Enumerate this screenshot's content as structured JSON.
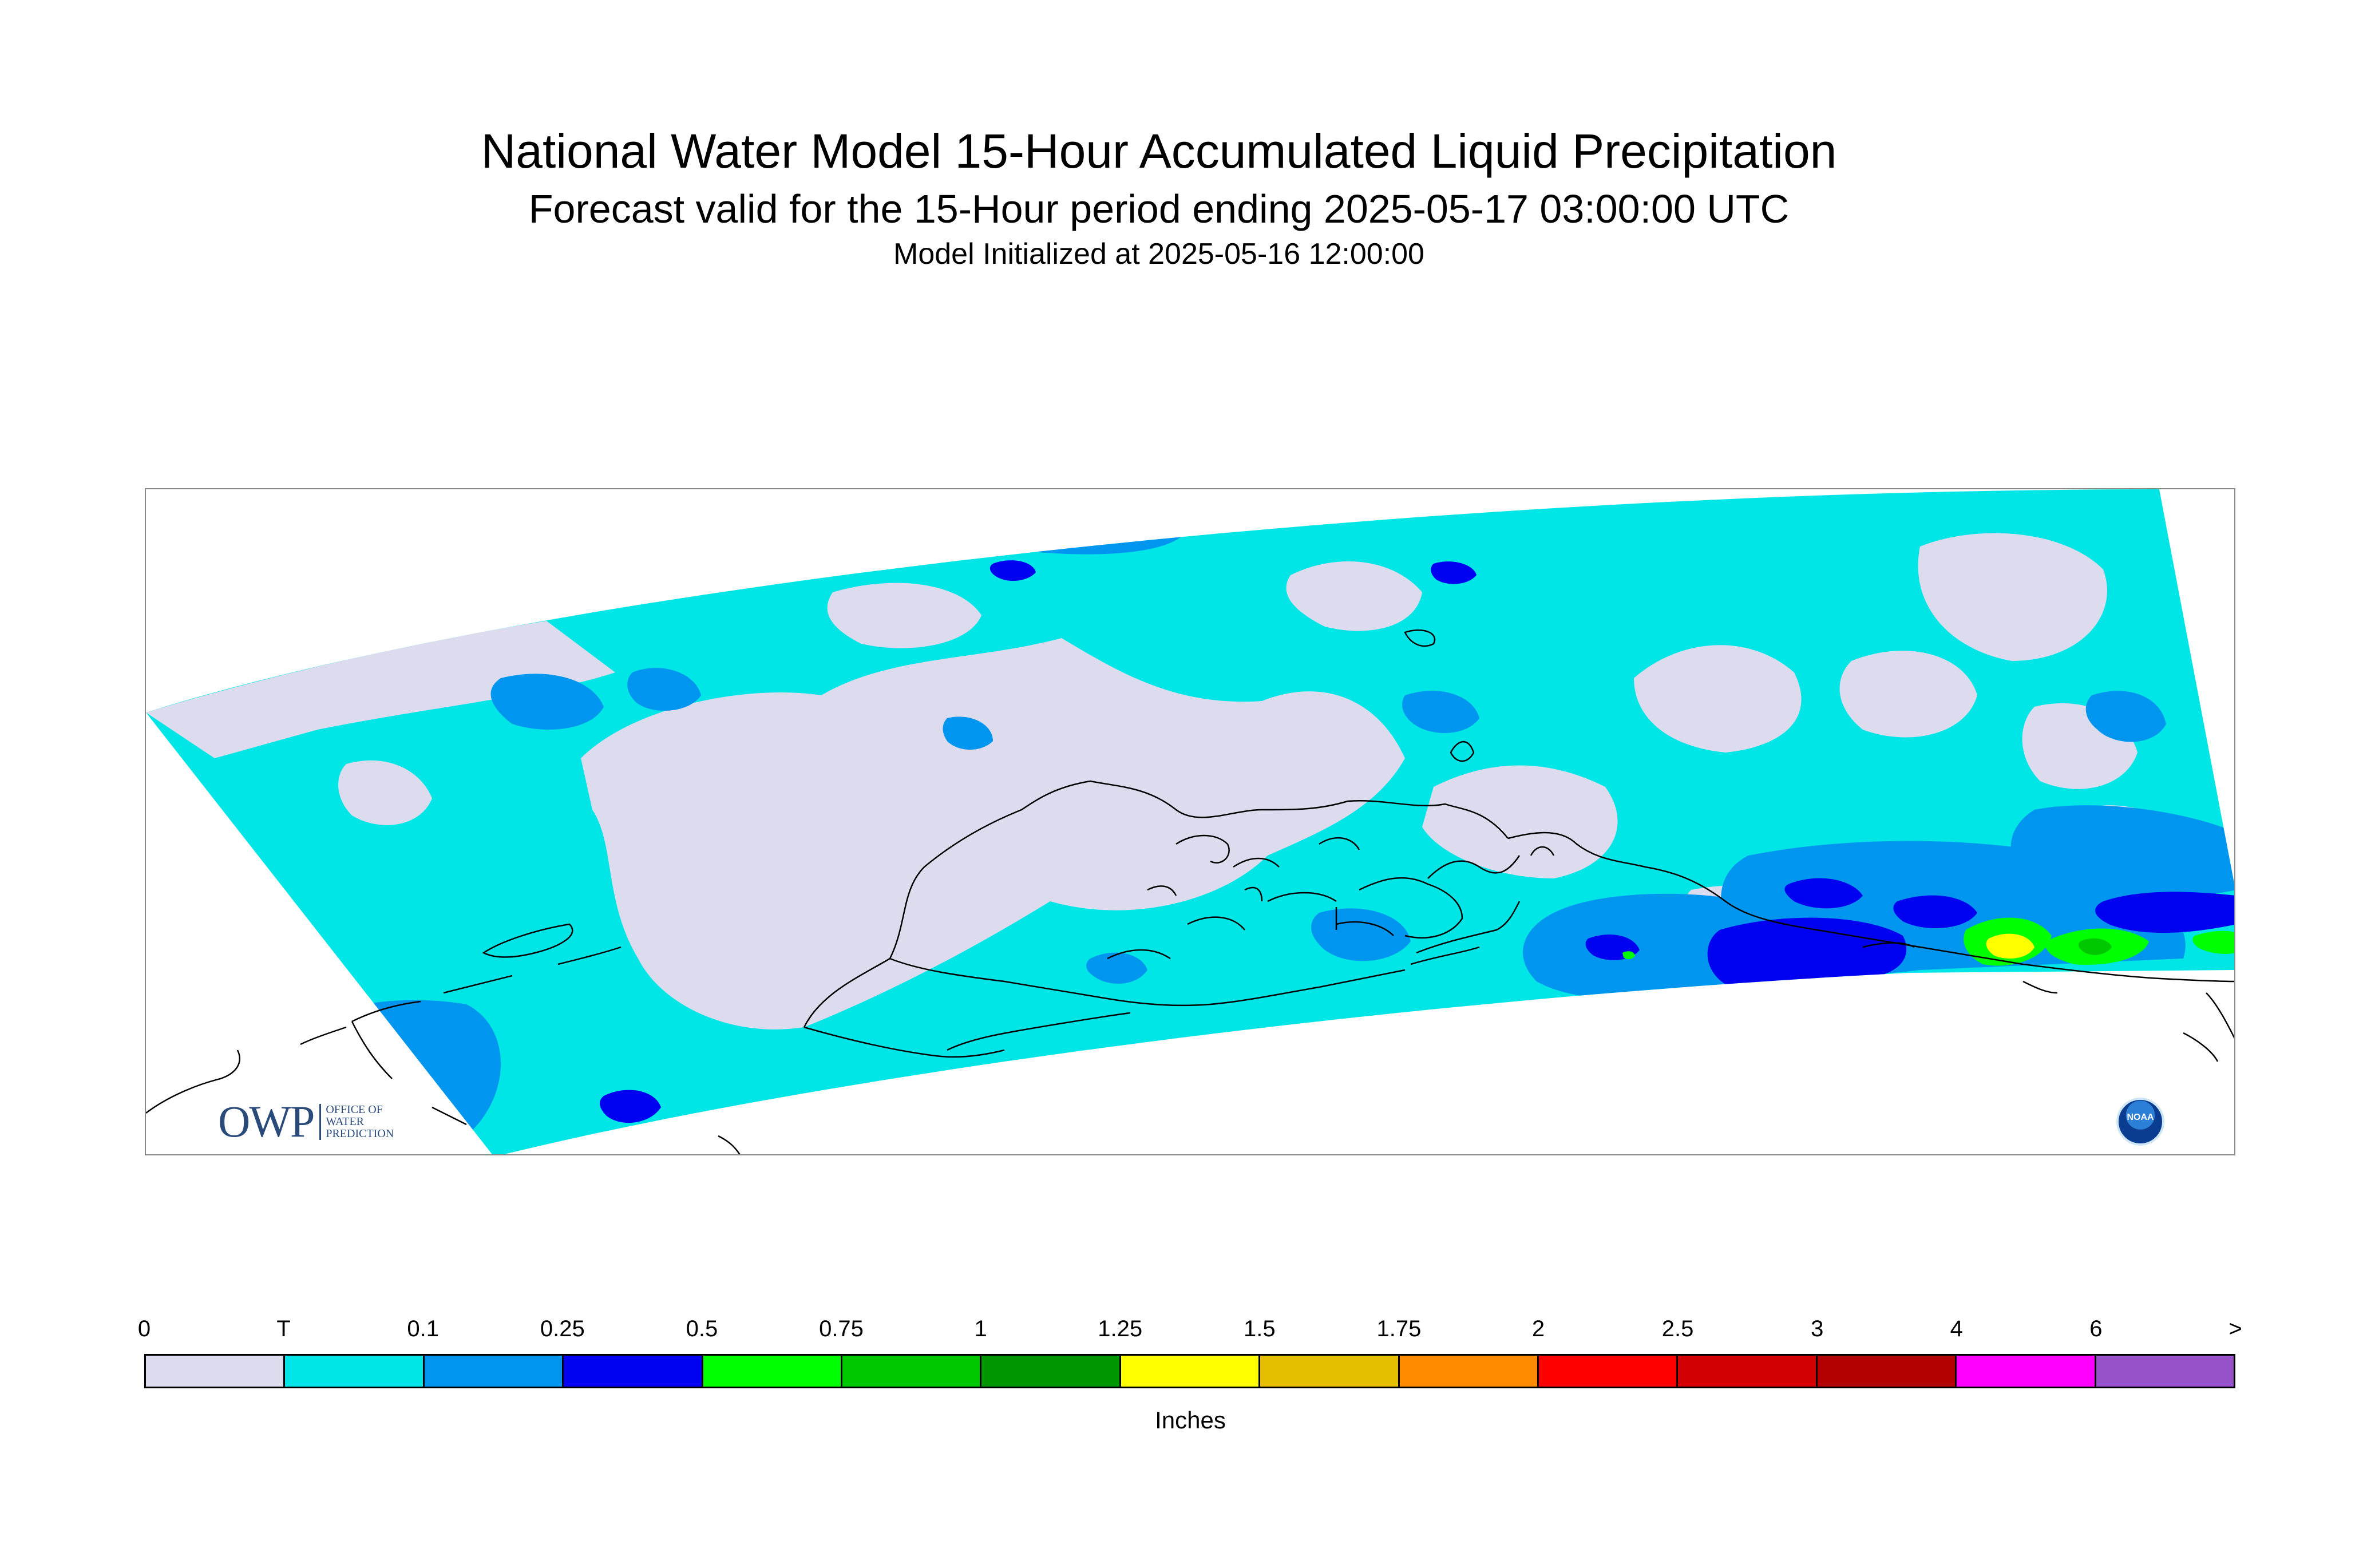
{
  "title": "National Water Model 15-Hour Accumulated Liquid Precipitation",
  "subtitle": "Forecast valid for the 15-Hour period ending 2025-05-17 03:00:00 UTC",
  "init_text": "Model Initialized at 2025-05-16 12:00:00",
  "map": {
    "region": "Alaska",
    "background_color": "#ffffff",
    "logos": {
      "owp": {
        "mark": "OWP",
        "text": "OFFICE OF WATER PREDICTION"
      },
      "noaa": {
        "text": "NOAA"
      }
    }
  },
  "legend": {
    "labels": [
      "0",
      "T",
      "0.1",
      "0.25",
      "0.5",
      "0.75",
      "1",
      "1.25",
      "1.5",
      "1.75",
      "2",
      "2.5",
      "3",
      "4",
      "6",
      ">"
    ],
    "colors": [
      "#dcdcee",
      "#00e6e6",
      "#0096f0",
      "#0000f0",
      "#00ff00",
      "#00c800",
      "#009600",
      "#ffff00",
      "#e6be00",
      "#ff8c00",
      "#ff0000",
      "#d20000",
      "#b40000",
      "#ff00ff",
      "#9650c8"
    ],
    "unit": "Inches"
  }
}
